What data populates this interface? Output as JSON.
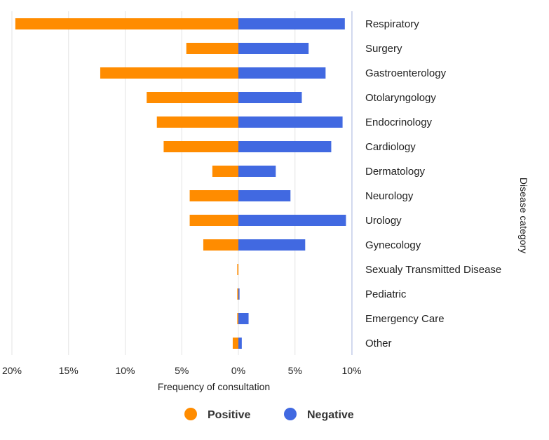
{
  "chart_data": {
    "type": "bar",
    "orientation": "horizontal-diverging",
    "categories": [
      "Respiratory",
      "Surgery",
      "Gastroenterology",
      "Otolaryngology",
      "Endocrinology",
      "Cardiology",
      "Dermatology",
      "Neurology",
      "Urology",
      "Gynecology",
      "Sexualy Transmitted Disease",
      "Pediatric",
      "Emergency Care",
      "Other"
    ],
    "series": [
      {
        "name": "Positive",
        "color": "#FF8C00",
        "values": [
          19.7,
          4.6,
          12.2,
          8.1,
          7.2,
          6.6,
          2.3,
          4.3,
          4.3,
          3.1,
          0.1,
          0.1,
          0.1,
          0.5
        ]
      },
      {
        "name": "Negative",
        "color": "#4169E1",
        "values": [
          9.4,
          6.2,
          7.7,
          5.6,
          9.2,
          8.2,
          3.3,
          4.6,
          9.5,
          5.9,
          0.0,
          0.1,
          0.9,
          0.3
        ]
      }
    ],
    "xlabel": "Frequency of consultation",
    "ylabel": "Disease category",
    "x_ticks": [
      "20%",
      "15%",
      "10%",
      "5%",
      "0%",
      "5%",
      "10%"
    ],
    "x_tick_values": [
      -20,
      -15,
      -10,
      -5,
      0,
      5,
      10
    ],
    "xlim": [
      -20,
      10
    ],
    "legend": {
      "position": "bottom",
      "items": [
        "Positive",
        "Negative"
      ]
    }
  }
}
